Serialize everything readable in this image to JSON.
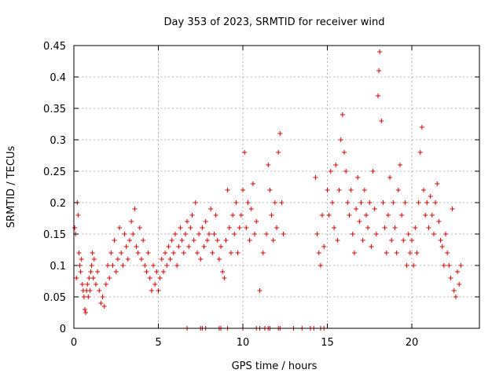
{
  "chart_data": {
    "type": "scatter",
    "title": "Day 353 of 2023, SRMTID for receiver wind",
    "xlabel": "GPS time / hours",
    "ylabel": "SRMTID / TECUs",
    "xlim": [
      0,
      24
    ],
    "ylim": [
      0,
      0.45
    ],
    "xticks": [
      "0",
      "5",
      "10",
      "15",
      "20"
    ],
    "yticks": [
      "0",
      "0.05",
      "0.1",
      "0.15",
      "0.2",
      "0.25",
      "0.3",
      "0.35",
      "0.4",
      "0.45"
    ],
    "grid": true,
    "marker": "plus",
    "color": "#e00000",
    "series": [
      {
        "name": "SRMTID",
        "points": [
          [
            0.05,
            0.16
          ],
          [
            0.1,
            0.15
          ],
          [
            0.15,
            0.08
          ],
          [
            0.2,
            0.2
          ],
          [
            0.25,
            0.18
          ],
          [
            0.3,
            0.12
          ],
          [
            0.35,
            0.1
          ],
          [
            0.4,
            0.09
          ],
          [
            0.45,
            0.11
          ],
          [
            0.5,
            0.07
          ],
          [
            0.55,
            0.06
          ],
          [
            0.6,
            0.05
          ],
          [
            0.65,
            0.03
          ],
          [
            0.7,
            0.025
          ],
          [
            0.75,
            0.06
          ],
          [
            0.8,
            0.07
          ],
          [
            0.85,
            0.05
          ],
          [
            0.9,
            0.08
          ],
          [
            0.95,
            0.06
          ],
          [
            1.0,
            0.09
          ],
          [
            1.05,
            0.1
          ],
          [
            1.1,
            0.12
          ],
          [
            1.15,
            0.08
          ],
          [
            1.2,
            0.11
          ],
          [
            1.3,
            0.07
          ],
          [
            1.4,
            0.09
          ],
          [
            1.5,
            0.06
          ],
          [
            1.6,
            0.04
          ],
          [
            1.7,
            0.05
          ],
          [
            1.8,
            0.035
          ],
          [
            1.9,
            0.07
          ],
          [
            2.0,
            0.1
          ],
          [
            2.1,
            0.08
          ],
          [
            2.2,
            0.12
          ],
          [
            2.3,
            0.1
          ],
          [
            2.4,
            0.14
          ],
          [
            2.5,
            0.09
          ],
          [
            2.6,
            0.11
          ],
          [
            2.7,
            0.16
          ],
          [
            2.8,
            0.12
          ],
          [
            2.9,
            0.1
          ],
          [
            3.0,
            0.15
          ],
          [
            3.1,
            0.13
          ],
          [
            3.2,
            0.11
          ],
          [
            3.3,
            0.14
          ],
          [
            3.4,
            0.17
          ],
          [
            3.5,
            0.15
          ],
          [
            3.6,
            0.19
          ],
          [
            3.7,
            0.13
          ],
          [
            3.8,
            0.12
          ],
          [
            3.9,
            0.16
          ],
          [
            4.0,
            0.11
          ],
          [
            4.1,
            0.14
          ],
          [
            4.2,
            0.1
          ],
          [
            4.3,
            0.09
          ],
          [
            4.4,
            0.12
          ],
          [
            4.5,
            0.08
          ],
          [
            4.6,
            0.06
          ],
          [
            4.7,
            0.1
          ],
          [
            4.8,
            0.07
          ],
          [
            4.9,
            0.09
          ],
          [
            5.0,
            0.06
          ],
          [
            5.1,
            0.08
          ],
          [
            5.2,
            0.11
          ],
          [
            5.3,
            0.09
          ],
          [
            5.4,
            0.12
          ],
          [
            5.5,
            0.1
          ],
          [
            5.6,
            0.13
          ],
          [
            5.7,
            0.11
          ],
          [
            5.8,
            0.14
          ],
          [
            5.9,
            0.12
          ],
          [
            6.0,
            0.15
          ],
          [
            6.1,
            0.1
          ],
          [
            6.2,
            0.13
          ],
          [
            6.3,
            0.16
          ],
          [
            6.4,
            0.14
          ],
          [
            6.5,
            0.12
          ],
          [
            6.6,
            0.15
          ],
          [
            6.7,
            0.17
          ],
          [
            6.8,
            0.13
          ],
          [
            6.9,
            0.16
          ],
          [
            7.0,
            0.18
          ],
          [
            7.1,
            0.14
          ],
          [
            7.2,
            0.2
          ],
          [
            7.3,
            0.12
          ],
          [
            7.4,
            0.15
          ],
          [
            7.5,
            0.11
          ],
          [
            7.6,
            0.16
          ],
          [
            7.7,
            0.13
          ],
          [
            7.8,
            0.17
          ],
          [
            7.9,
            0.14
          ],
          [
            8.0,
            0.15
          ],
          [
            8.1,
            0.19
          ],
          [
            8.2,
            0.12
          ],
          [
            8.3,
            0.15
          ],
          [
            8.4,
            0.18
          ],
          [
            8.5,
            0.14
          ],
          [
            8.6,
            0.11
          ],
          [
            8.7,
            0.13
          ],
          [
            8.8,
            0.09
          ],
          [
            8.9,
            0.08
          ],
          [
            9.0,
            0.14
          ],
          [
            9.1,
            0.22
          ],
          [
            9.2,
            0.16
          ],
          [
            9.3,
            0.12
          ],
          [
            9.4,
            0.18
          ],
          [
            9.5,
            0.15
          ],
          [
            9.6,
            0.2
          ],
          [
            9.7,
            0.12
          ],
          [
            9.8,
            0.16
          ],
          [
            9.9,
            0.18
          ],
          [
            10.0,
            0.22
          ],
          [
            10.1,
            0.28
          ],
          [
            10.2,
            0.16
          ],
          [
            10.3,
            0.2
          ],
          [
            10.4,
            0.14
          ],
          [
            10.5,
            0.19
          ],
          [
            10.6,
            0.23
          ],
          [
            10.7,
            0.15
          ],
          [
            10.8,
            0.17
          ],
          [
            11.0,
            0.06
          ],
          [
            11.2,
            0.12
          ],
          [
            11.4,
            0.15
          ],
          [
            11.5,
            0.26
          ],
          [
            11.6,
            0.22
          ],
          [
            11.7,
            0.18
          ],
          [
            11.8,
            0.14
          ],
          [
            11.9,
            0.2
          ],
          [
            12.0,
            0.16
          ],
          [
            12.1,
            0.28
          ],
          [
            12.2,
            0.31
          ],
          [
            12.3,
            0.2
          ],
          [
            12.4,
            0.15
          ],
          [
            14.3,
            0.24
          ],
          [
            14.4,
            0.15
          ],
          [
            14.5,
            0.12
          ],
          [
            14.6,
            0.1
          ],
          [
            14.7,
            0.18
          ],
          [
            14.8,
            0.13
          ],
          [
            15.0,
            0.22
          ],
          [
            15.1,
            0.18
          ],
          [
            15.2,
            0.25
          ],
          [
            15.3,
            0.2
          ],
          [
            15.4,
            0.16
          ],
          [
            15.5,
            0.26
          ],
          [
            15.6,
            0.14
          ],
          [
            15.7,
            0.22
          ],
          [
            15.8,
            0.3
          ],
          [
            15.9,
            0.34
          ],
          [
            16.0,
            0.28
          ],
          [
            16.1,
            0.25
          ],
          [
            16.2,
            0.2
          ],
          [
            16.3,
            0.18
          ],
          [
            16.4,
            0.22
          ],
          [
            16.5,
            0.15
          ],
          [
            16.6,
            0.12
          ],
          [
            16.7,
            0.19
          ],
          [
            16.8,
            0.24
          ],
          [
            16.9,
            0.17
          ],
          [
            17.0,
            0.2
          ],
          [
            17.1,
            0.14
          ],
          [
            17.2,
            0.22
          ],
          [
            17.3,
            0.18
          ],
          [
            17.4,
            0.16
          ],
          [
            17.5,
            0.2
          ],
          [
            17.6,
            0.13
          ],
          [
            17.7,
            0.25
          ],
          [
            17.8,
            0.19
          ],
          [
            17.9,
            0.15
          ],
          [
            18.0,
            0.37
          ],
          [
            18.05,
            0.41
          ],
          [
            18.1,
            0.44
          ],
          [
            18.2,
            0.33
          ],
          [
            18.3,
            0.2
          ],
          [
            18.4,
            0.16
          ],
          [
            18.5,
            0.12
          ],
          [
            18.6,
            0.18
          ],
          [
            18.7,
            0.24
          ],
          [
            18.8,
            0.14
          ],
          [
            18.9,
            0.2
          ],
          [
            19.0,
            0.16
          ],
          [
            19.1,
            0.12
          ],
          [
            19.2,
            0.22
          ],
          [
            19.3,
            0.26
          ],
          [
            19.4,
            0.18
          ],
          [
            19.5,
            0.14
          ],
          [
            19.6,
            0.2
          ],
          [
            19.7,
            0.1
          ],
          [
            19.8,
            0.15
          ],
          [
            19.9,
            0.12
          ],
          [
            20.0,
            0.14
          ],
          [
            20.1,
            0.1
          ],
          [
            20.2,
            0.16
          ],
          [
            20.3,
            0.12
          ],
          [
            20.4,
            0.2
          ],
          [
            20.5,
            0.28
          ],
          [
            20.6,
            0.32
          ],
          [
            20.7,
            0.22
          ],
          [
            20.8,
            0.18
          ],
          [
            20.9,
            0.2
          ],
          [
            21.0,
            0.16
          ],
          [
            21.1,
            0.21
          ],
          [
            21.2,
            0.18
          ],
          [
            21.3,
            0.15
          ],
          [
            21.4,
            0.2
          ],
          [
            21.5,
            0.23
          ],
          [
            21.6,
            0.17
          ],
          [
            21.7,
            0.14
          ],
          [
            21.8,
            0.13
          ],
          [
            21.9,
            0.1
          ],
          [
            22.0,
            0.15
          ],
          [
            22.1,
            0.12
          ],
          [
            22.2,
            0.1
          ],
          [
            22.3,
            0.08
          ],
          [
            22.4,
            0.19
          ],
          [
            22.5,
            0.06
          ],
          [
            22.6,
            0.05
          ],
          [
            22.7,
            0.09
          ],
          [
            22.8,
            0.07
          ],
          [
            22.9,
            0.1
          ],
          [
            6.7,
            0.0
          ],
          [
            7.5,
            0.0
          ],
          [
            7.6,
            0.0
          ],
          [
            7.8,
            0.0
          ],
          [
            8.6,
            0.0
          ],
          [
            8.7,
            0.0
          ],
          [
            9.1,
            0.0
          ],
          [
            10.0,
            0.0
          ],
          [
            10.8,
            0.0
          ],
          [
            11.0,
            0.0
          ],
          [
            11.3,
            0.0
          ],
          [
            11.5,
            0.0
          ],
          [
            11.6,
            0.0
          ],
          [
            12.1,
            0.0
          ],
          [
            12.2,
            0.0
          ],
          [
            13.0,
            0.0
          ],
          [
            13.5,
            0.0
          ],
          [
            14.0,
            0.0
          ],
          [
            14.2,
            0.0
          ],
          [
            14.6,
            0.0
          ],
          [
            14.8,
            0.0
          ]
        ]
      }
    ]
  }
}
